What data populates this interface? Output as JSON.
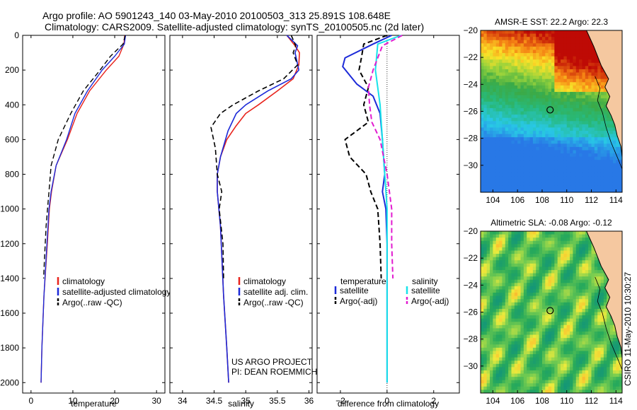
{
  "header": {
    "line1": "Argo profile: AO 5901243_140 03-May-2010 20100503_313 25.891S 108.648E",
    "line2": "Climatology: CARS2009. Satellite-adjusted climatology: synTS_20100505.nc (2d later)"
  },
  "footer": {
    "stamp": "CSIRO 11-May-2010 10:30:27",
    "project": "US ARGO PROJECT",
    "pi": "PI: DEAN ROEMMICH"
  },
  "colors": {
    "climatology": "#e8231c",
    "satellite": "#1c2ad8",
    "argo": "#000000",
    "satellite_sal": "#17e3ea",
    "argo_sal": "#e21bd0",
    "land": "#f5c8a0"
  },
  "chart_data": [
    {
      "type": "line",
      "xlabel": "temperature",
      "ylabel": "",
      "xlim": [
        -2,
        32
      ],
      "ylim": [
        2060,
        0
      ],
      "xticks": [
        0,
        10,
        20,
        30
      ],
      "yticks": [
        0,
        200,
        400,
        600,
        800,
        1000,
        1200,
        1400,
        1600,
        1800,
        2000
      ],
      "legend": {
        "position": "bottom",
        "entries": [
          "climatology",
          "satellite-adjusted climatology",
          "Argo(..raw -QC)"
        ]
      },
      "series": [
        {
          "name": "climatology",
          "x": [
            22.4,
            22.2,
            21,
            18,
            14,
            11,
            8.7,
            6,
            4.9,
            4.4,
            3.9,
            3.1,
            2.6,
            2.4
          ],
          "y": [
            0,
            50,
            120,
            200,
            320,
            450,
            600,
            750,
            900,
            1000,
            1200,
            1500,
            1800,
            2000
          ]
        },
        {
          "name": "satellite-adjusted climatology",
          "x": [
            22.6,
            22.3,
            20,
            17,
            13.5,
            10.5,
            8.5,
            6,
            4.8,
            4.3,
            3.8,
            3.1,
            2.6,
            2.4
          ],
          "y": [
            0,
            50,
            120,
            200,
            320,
            450,
            600,
            750,
            900,
            1000,
            1200,
            1500,
            1800,
            2000
          ]
        },
        {
          "name": "Argo(..raw -QC)",
          "x": [
            22.5,
            22,
            19,
            16.5,
            12.5,
            9.5,
            6.5,
            4.8,
            4.3,
            3.6,
            3.2,
            3.0
          ],
          "y": [
            0,
            50,
            120,
            200,
            320,
            450,
            600,
            750,
            900,
            1100,
            1300,
            1400
          ]
        }
      ]
    },
    {
      "type": "line",
      "xlabel": "salinity",
      "ylabel": "",
      "xlim": [
        33.8,
        36.05
      ],
      "ylim": [
        2060,
        0
      ],
      "xticks": [
        34,
        34.5,
        35,
        35.5,
        36
      ],
      "legend": {
        "position": "bottom",
        "entries": [
          "climatology",
          "satellite adj. clim.",
          "Argo(..raw -QC)"
        ]
      },
      "series": [
        {
          "name": "climatology",
          "x": [
            35.65,
            35.78,
            35.85,
            35.84,
            35.75,
            35.5,
            35.2,
            35.0,
            34.85,
            34.7,
            34.6,
            34.55,
            34.55,
            34.6,
            34.65,
            34.7,
            34.73
          ],
          "y": [
            0,
            60,
            100,
            170,
            250,
            320,
            400,
            450,
            520,
            600,
            700,
            800,
            900,
            1100,
            1500,
            1800,
            2000
          ]
        },
        {
          "name": "satellite adj. clim.",
          "x": [
            35.65,
            35.82,
            35.78,
            35.84,
            35.72,
            35.35,
            35.0,
            34.85,
            34.72,
            34.6,
            34.55,
            34.55,
            34.6,
            34.65,
            34.7,
            34.73
          ],
          "y": [
            0,
            60,
            100,
            200,
            250,
            320,
            400,
            450,
            550,
            700,
            800,
            900,
            1100,
            1500,
            1800,
            2000
          ]
        },
        {
          "name": "Argo(..raw -QC)",
          "x": [
            35.72,
            35.79,
            35.75,
            35.82,
            35.6,
            35.2,
            34.8,
            34.6,
            34.45,
            34.52,
            34.55,
            34.62,
            34.58,
            34.64,
            34.65
          ],
          "y": [
            0,
            60,
            100,
            170,
            250,
            320,
            400,
            450,
            530,
            650,
            800,
            900,
            1000,
            1200,
            1400
          ]
        }
      ]
    },
    {
      "type": "line",
      "xlabel": "difference from climatology",
      "ylabel": "",
      "xlim": [
        -3,
        3.1
      ],
      "ylim": [
        2060,
        0
      ],
      "xticks": [
        -2,
        0,
        2
      ],
      "legend": {
        "position": "bottom",
        "entries": [
          "temperature",
          "satellite",
          "Argo(-adj)",
          "salinity",
          "satellite",
          "Argo(-adj)"
        ]
      },
      "series": [
        {
          "name": "satellite",
          "x": [
            0.2,
            -0.6,
            -1.8,
            -1.9,
            -1.3,
            -0.6,
            -0.3,
            -0.2,
            -0.15,
            -0.1,
            -0.2,
            -0.05,
            0,
            0,
            0
          ],
          "y": [
            0,
            50,
            130,
            180,
            280,
            350,
            450,
            600,
            700,
            800,
            900,
            1000,
            1200,
            1500,
            2000
          ]
        },
        {
          "name": "Argo(-adj)",
          "x": [
            0,
            -1.0,
            -1.1,
            -1.2,
            -0.8,
            -1.0,
            -0.8,
            -1.8,
            -1.6,
            -0.9,
            -0.7,
            -0.4,
            -0.3,
            -0.25
          ],
          "y": [
            0,
            50,
            130,
            200,
            300,
            400,
            500,
            600,
            700,
            800,
            900,
            1000,
            1200,
            1400
          ]
        },
        {
          "name": "satellite",
          "x": [
            0.6,
            -0.4,
            -0.5,
            -0.3,
            -0.2,
            -0.1,
            0,
            0,
            0
          ],
          "y": [
            0,
            50,
            200,
            400,
            600,
            800,
            1000,
            1500,
            2000
          ]
        },
        {
          "name": "Argo(-adj)",
          "x": [
            0.65,
            -0.2,
            -0.6,
            -0.8,
            -0.75,
            -0.65,
            -0.3,
            0,
            0.2,
            0.2,
            0.25
          ],
          "y": [
            0,
            60,
            200,
            300,
            400,
            500,
            600,
            800,
            1000,
            1200,
            1400
          ]
        }
      ]
    },
    {
      "type": "heatmap",
      "title": "AMSR-E SST: 22.2 Argo: 22.3",
      "xlim": [
        103,
        114.5
      ],
      "ylim": [
        -32,
        -20
      ],
      "xticks": [
        104,
        106,
        108,
        110,
        112,
        114
      ],
      "yticks": [
        -20,
        -22,
        -24,
        -26,
        -28,
        -30
      ],
      "marker": {
        "lon": 108.648,
        "lat": -25.891
      }
    },
    {
      "type": "heatmap",
      "title": "Altimetric SLA: -0.08 Argo: -0.12",
      "xlim": [
        103,
        114.5
      ],
      "ylim": [
        -32,
        -20
      ],
      "xticks": [
        104,
        106,
        108,
        110,
        112,
        114
      ],
      "yticks": [
        -20,
        -22,
        -24,
        -26,
        -28,
        -30
      ],
      "marker": {
        "lon": 108.648,
        "lat": -25.891
      }
    }
  ]
}
